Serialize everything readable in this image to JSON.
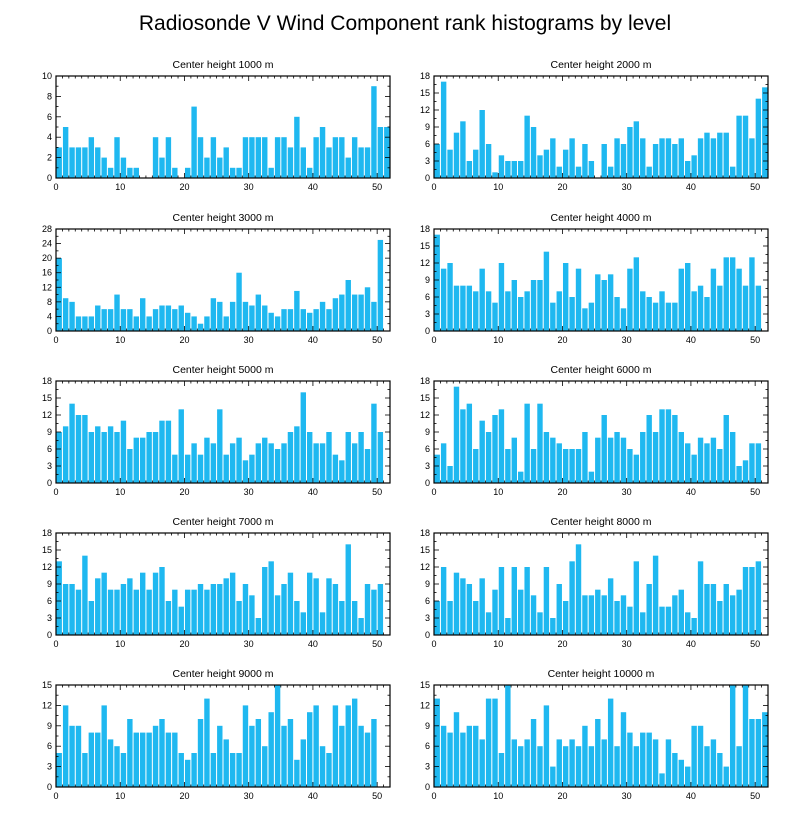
{
  "title": "Radiosonde V Wind Component rank histograms by level",
  "colors": {
    "bar": "#1fb8f0",
    "bar_edge": "#ffffff",
    "axis": "#000000"
  },
  "chart_data": [
    {
      "type": "bar",
      "title": "Center height 1000 m",
      "xlabel": "",
      "ylabel": "",
      "xlim": [
        0,
        52
      ],
      "ylim": [
        0,
        10
      ],
      "xticks": [
        0,
        10,
        20,
        30,
        40,
        50
      ],
      "yticks": [
        0,
        2,
        4,
        6,
        8,
        10
      ],
      "values": [
        3,
        5,
        3,
        3,
        3,
        4,
        3,
        2,
        1,
        4,
        2,
        1,
        1,
        0,
        0,
        4,
        2,
        4,
        1,
        0,
        1,
        7,
        4,
        2,
        4,
        2,
        3,
        1,
        1,
        4,
        4,
        4,
        4,
        1,
        4,
        4,
        3,
        6,
        3,
        1,
        4,
        5,
        3,
        4,
        4,
        2,
        4,
        3,
        3,
        9,
        5,
        5
      ]
    },
    {
      "type": "bar",
      "title": "Center height 2000 m",
      "xlabel": "",
      "ylabel": "",
      "xlim": [
        0,
        52
      ],
      "ylim": [
        0,
        18
      ],
      "xticks": [
        0,
        10,
        20,
        30,
        40,
        50
      ],
      "yticks": [
        0,
        3,
        6,
        9,
        12,
        15,
        18
      ],
      "values": [
        6,
        17,
        5,
        8,
        10,
        3,
        5,
        12,
        6,
        1,
        4,
        3,
        3,
        3,
        11,
        9,
        4,
        5,
        7,
        2,
        5,
        7,
        2,
        6,
        3,
        0,
        6,
        2,
        7,
        6,
        9,
        10,
        7,
        2,
        6,
        7,
        7,
        6,
        7,
        3,
        4,
        7,
        8,
        7,
        8,
        8,
        2,
        11,
        11,
        7,
        14,
        16
      ]
    },
    {
      "type": "bar",
      "title": "Center height 3000 m",
      "xlabel": "",
      "ylabel": "",
      "xlim": [
        0,
        52
      ],
      "ylim": [
        0,
        28
      ],
      "xticks": [
        0,
        10,
        20,
        30,
        40,
        50
      ],
      "yticks": [
        0,
        4,
        8,
        12,
        16,
        20,
        24,
        28
      ],
      "values": [
        20,
        9,
        8,
        4,
        4,
        4,
        7,
        6,
        6,
        10,
        6,
        6,
        4,
        9,
        4,
        6,
        7,
        7,
        6,
        7,
        5,
        4,
        2,
        4,
        9,
        8,
        4,
        8,
        16,
        8,
        7,
        10,
        7,
        5,
        4,
        6,
        6,
        11,
        6,
        5,
        6,
        8,
        6,
        9,
        10,
        14,
        10,
        10,
        12,
        8,
        25
      ]
    },
    {
      "type": "bar",
      "title": "Center height 4000 m",
      "xlabel": "",
      "ylabel": "",
      "xlim": [
        0,
        52
      ],
      "ylim": [
        0,
        18
      ],
      "xticks": [
        0,
        10,
        20,
        30,
        40,
        50
      ],
      "yticks": [
        0,
        3,
        6,
        9,
        12,
        15,
        18
      ],
      "values": [
        17,
        11,
        12,
        8,
        8,
        8,
        7,
        11,
        7,
        5,
        12,
        7,
        9,
        6,
        7,
        9,
        9,
        14,
        5,
        7,
        12,
        6,
        11,
        4,
        5,
        10,
        9,
        10,
        6,
        4,
        11,
        13,
        7,
        6,
        5,
        7,
        5,
        5,
        11,
        12,
        7,
        8,
        6,
        11,
        8,
        13,
        13,
        11,
        8,
        13,
        8
      ]
    },
    {
      "type": "bar",
      "title": "Center height 5000 m",
      "xlabel": "",
      "ylabel": "",
      "xlim": [
        0,
        52
      ],
      "ylim": [
        0,
        18
      ],
      "xticks": [
        0,
        10,
        20,
        30,
        40,
        50
      ],
      "yticks": [
        0,
        3,
        6,
        9,
        12,
        15,
        18
      ],
      "values": [
        9,
        10,
        14,
        12,
        12,
        9,
        10,
        9,
        10,
        9,
        11,
        6,
        8,
        8,
        9,
        9,
        11,
        11,
        5,
        13,
        5,
        7,
        5,
        8,
        7,
        13,
        5,
        7,
        8,
        4,
        5,
        7,
        8,
        7,
        6,
        7,
        9,
        10,
        16,
        9,
        7,
        7,
        9,
        5,
        4,
        9,
        7,
        9,
        6,
        14,
        9
      ]
    },
    {
      "type": "bar",
      "title": "Center height 6000 m",
      "xlabel": "",
      "ylabel": "",
      "xlim": [
        0,
        52
      ],
      "ylim": [
        0,
        18
      ],
      "xticks": [
        0,
        10,
        20,
        30,
        40,
        50
      ],
      "yticks": [
        0,
        3,
        6,
        9,
        12,
        15,
        18
      ],
      "values": [
        5,
        7,
        3,
        17,
        13,
        14,
        6,
        11,
        9,
        12,
        13,
        6,
        8,
        2,
        14,
        6,
        14,
        9,
        8,
        7,
        6,
        6,
        6,
        9,
        2,
        8,
        12,
        8,
        9,
        8,
        6,
        5,
        9,
        12,
        9,
        13,
        13,
        12,
        9,
        7,
        5,
        8,
        7,
        8,
        6,
        12,
        9,
        3,
        4,
        7,
        7
      ]
    },
    {
      "type": "bar",
      "title": "Center height 7000 m",
      "xlabel": "",
      "ylabel": "",
      "xlim": [
        0,
        52
      ],
      "ylim": [
        0,
        18
      ],
      "xticks": [
        0,
        10,
        20,
        30,
        40,
        50
      ],
      "yticks": [
        0,
        3,
        6,
        9,
        12,
        15,
        18
      ],
      "values": [
        13,
        9,
        9,
        8,
        14,
        6,
        10,
        11,
        8,
        8,
        9,
        10,
        8,
        11,
        8,
        11,
        12,
        6,
        8,
        5,
        8,
        8,
        9,
        8,
        9,
        9,
        10,
        11,
        6,
        9,
        7,
        3,
        12,
        13,
        7,
        9,
        11,
        6,
        4,
        11,
        10,
        4,
        10,
        9,
        6,
        16,
        6,
        3,
        9,
        8,
        9
      ]
    },
    {
      "type": "bar",
      "title": "Center height 8000 m",
      "xlabel": "",
      "ylabel": "",
      "xlim": [
        0,
        52
      ],
      "ylim": [
        0,
        18
      ],
      "xticks": [
        0,
        10,
        20,
        30,
        40,
        50
      ],
      "yticks": [
        0,
        3,
        6,
        9,
        12,
        15,
        18
      ],
      "values": [
        6,
        12,
        6,
        11,
        10,
        9,
        6,
        10,
        4,
        8,
        12,
        3,
        12,
        8,
        12,
        7,
        4,
        12,
        3,
        9,
        6,
        13,
        16,
        7,
        7,
        8,
        7,
        10,
        6,
        7,
        5,
        13,
        4,
        9,
        14,
        5,
        5,
        7,
        8,
        4,
        3,
        13,
        9,
        9,
        6,
        9,
        7,
        8,
        12,
        12,
        13
      ]
    },
    {
      "type": "bar",
      "title": "Center height 9000 m",
      "xlabel": "",
      "ylabel": "",
      "xlim": [
        0,
        52
      ],
      "ylim": [
        0,
        15
      ],
      "xticks": [
        0,
        10,
        20,
        30,
        40,
        50
      ],
      "yticks": [
        0,
        3,
        6,
        9,
        12,
        15
      ],
      "values": [
        5,
        12,
        9,
        9,
        5,
        8,
        8,
        12,
        7,
        6,
        5,
        10,
        8,
        8,
        8,
        9,
        10,
        8,
        8,
        5,
        4,
        5,
        10,
        13,
        5,
        9,
        7,
        5,
        5,
        12,
        9,
        10,
        6,
        11,
        15,
        9,
        10,
        4,
        7,
        11,
        12,
        6,
        5,
        12,
        9,
        12,
        13,
        9,
        8,
        10
      ]
    },
    {
      "type": "bar",
      "title": "Center height 10000 m",
      "xlabel": "",
      "ylabel": "",
      "xlim": [
        0,
        52
      ],
      "ylim": [
        0,
        15
      ],
      "xticks": [
        0,
        10,
        20,
        30,
        40,
        50
      ],
      "yticks": [
        0,
        3,
        6,
        9,
        12,
        15
      ],
      "values": [
        13,
        9,
        8,
        11,
        8,
        9,
        9,
        7,
        13,
        13,
        5,
        15,
        7,
        6,
        7,
        10,
        6,
        12,
        3,
        7,
        6,
        7,
        6,
        9,
        6,
        10,
        7,
        13,
        6,
        11,
        8,
        6,
        8,
        8,
        7,
        2,
        7,
        5,
        4,
        3,
        9,
        9,
        6,
        7,
        5,
        3,
        15,
        6,
        15,
        10,
        10,
        11
      ]
    }
  ]
}
